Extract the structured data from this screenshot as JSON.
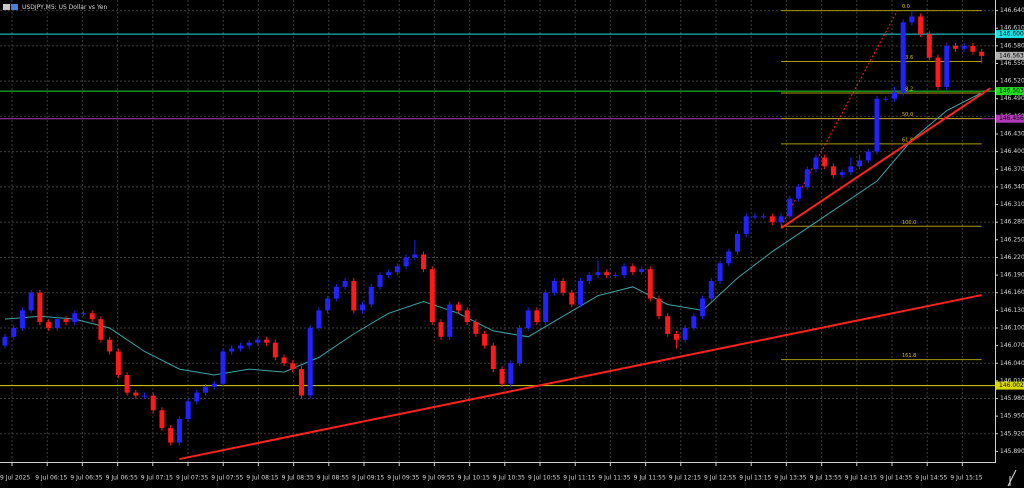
{
  "chart_data": {
    "type": "candlestick",
    "title": "USDJPY,M5:  US Dollar vs Yen",
    "up_color": "#2222ff",
    "down_color": "#ff1a1a",
    "ylim": [
      145.872,
      146.658
    ],
    "yticks": [
      {
        "value": 146.64,
        "label": "146.640"
      },
      {
        "value": 146.61,
        "label": "146.610"
      },
      {
        "value": 146.58,
        "label": "146.580"
      },
      {
        "value": 146.55,
        "label": "146.550"
      },
      {
        "value": 146.52,
        "label": "146.520"
      },
      {
        "value": 146.49,
        "label": "146.490"
      },
      {
        "value": 146.46,
        "label": "146.460"
      },
      {
        "value": 146.43,
        "label": "146.430"
      },
      {
        "value": 146.4,
        "label": "146.400"
      },
      {
        "value": 146.37,
        "label": "146.370"
      },
      {
        "value": 146.34,
        "label": "146.340"
      },
      {
        "value": 146.31,
        "label": "146.310"
      },
      {
        "value": 146.28,
        "label": "146.280"
      },
      {
        "value": 146.25,
        "label": "146.250"
      },
      {
        "value": 146.22,
        "label": "146.220"
      },
      {
        "value": 146.19,
        "label": "146.190"
      },
      {
        "value": 146.16,
        "label": "146.160"
      },
      {
        "value": 146.13,
        "label": "146.130"
      },
      {
        "value": 146.1,
        "label": "146.100"
      },
      {
        "value": 146.07,
        "label": "146.070"
      },
      {
        "value": 146.04,
        "label": "146.040"
      },
      {
        "value": 146.01,
        "label": "146.010"
      },
      {
        "value": 145.98,
        "label": "145.980"
      },
      {
        "value": 145.95,
        "label": "145.950"
      },
      {
        "value": 145.92,
        "label": "145.920"
      },
      {
        "value": 145.89,
        "label": "145.890"
      }
    ],
    "time_labels": [
      "9 Jul 2025",
      "9 Jul 06:15",
      "9 Jul 06:35",
      "9 Jul 06:55",
      "9 Jul 07:15",
      "9 Jul 07:35",
      "9 Jul 07:55",
      "9 Jul 08:15",
      "9 Jul 08:35",
      "9 Jul 08:55",
      "9 Jul 09:15",
      "9 Jul 09:35",
      "9 Jul 09:55",
      "9 Jul 10:15",
      "9 Jul 10:35",
      "9 Jul 10:55",
      "9 Jul 11:15",
      "9 Jul 11:35",
      "9 Jul 11:55",
      "9 Jul 12:15",
      "9 Jul 12:55",
      "9 Jul 13:15",
      "9 Jul 13:35",
      "9 Jul 13:55",
      "9 Jul 14:15",
      "9 Jul 14:35",
      "9 Jul 14:55",
      "9 Jul 15:15"
    ],
    "open": [
      146.07,
      146.085,
      146.1,
      146.13,
      146.16,
      146.11,
      146.1,
      146.115,
      146.11,
      146.125,
      146.125,
      146.115,
      146.08,
      146.06,
      146.02,
      145.99,
      145.985,
      145.985,
      145.96,
      145.93,
      145.905,
      145.945,
      145.975,
      145.99,
      146.0,
      146.005,
      146.06,
      146.065,
      146.07,
      146.075,
      146.08,
      146.075,
      146.05,
      146.04,
      146.03,
      145.985,
      146.1,
      146.13,
      146.15,
      146.17,
      146.18,
      146.13,
      146.14,
      146.17,
      146.19,
      146.195,
      146.205,
      146.22,
      146.225,
      146.2,
      146.11,
      146.085,
      146.14,
      146.13,
      146.11,
      146.09,
      146.07,
      146.03,
      146.005,
      146.04,
      146.1,
      146.13,
      146.11,
      146.16,
      146.18,
      146.16,
      146.14,
      146.18,
      146.19,
      146.195,
      146.19,
      146.19,
      146.205,
      146.195,
      146.2,
      146.15,
      146.12,
      146.09,
      146.08,
      146.1,
      146.12,
      146.15,
      146.18,
      146.21,
      146.23,
      146.26,
      146.29,
      146.29,
      146.29,
      146.28,
      146.29,
      146.32,
      146.34,
      146.37,
      146.39,
      146.375,
      146.36,
      146.365,
      146.375,
      146.385,
      146.4,
      146.49,
      146.49,
      146.5,
      146.62,
      146.63,
      146.6,
      146.56,
      146.51,
      146.58,
      146.575,
      146.58,
      146.57
    ],
    "high": [
      146.09,
      146.105,
      146.135,
      146.165,
      146.165,
      146.115,
      146.12,
      146.12,
      146.13,
      146.13,
      146.13,
      146.12,
      146.085,
      146.065,
      146.025,
      145.995,
      145.99,
      145.99,
      145.965,
      145.935,
      145.95,
      145.98,
      145.995,
      146.005,
      146.01,
      146.065,
      146.07,
      146.075,
      146.08,
      146.085,
      146.085,
      146.08,
      146.055,
      146.045,
      146.035,
      146.105,
      146.135,
      146.155,
      146.175,
      146.185,
      146.185,
      146.145,
      146.175,
      146.195,
      146.2,
      146.21,
      146.225,
      146.25,
      146.23,
      146.205,
      146.115,
      146.145,
      146.145,
      146.135,
      146.115,
      146.095,
      146.075,
      146.035,
      146.045,
      146.105,
      146.135,
      146.135,
      146.165,
      146.185,
      146.185,
      146.165,
      146.185,
      146.195,
      146.215,
      146.2,
      146.195,
      146.21,
      146.21,
      146.205,
      146.205,
      146.155,
      146.125,
      146.095,
      146.105,
      146.125,
      146.155,
      146.185,
      146.215,
      146.235,
      146.265,
      146.295,
      146.295,
      146.295,
      146.295,
      146.295,
      146.325,
      146.345,
      146.375,
      146.395,
      146.395,
      146.38,
      146.37,
      146.39,
      146.395,
      146.405,
      146.495,
      146.495,
      146.51,
      146.625,
      146.64,
      146.635,
      146.605,
      146.565,
      146.585,
      146.585,
      146.585,
      146.585,
      146.575
    ],
    "low": [
      146.065,
      146.08,
      146.095,
      146.125,
      146.105,
      146.095,
      146.095,
      146.105,
      146.105,
      146.12,
      146.11,
      146.075,
      146.055,
      146.015,
      145.985,
      145.98,
      145.98,
      145.955,
      145.925,
      145.9,
      145.9,
      145.94,
      145.97,
      145.985,
      145.995,
      146.0,
      146.055,
      146.06,
      146.065,
      146.07,
      146.07,
      146.045,
      146.035,
      146.025,
      145.98,
      145.98,
      146.095,
      146.125,
      146.145,
      146.165,
      146.125,
      146.125,
      146.135,
      146.165,
      146.185,
      146.19,
      146.2,
      146.215,
      146.195,
      146.105,
      146.08,
      146.08,
      146.125,
      146.105,
      146.085,
      146.065,
      146.025,
      146.0,
      146.0,
      146.035,
      146.095,
      146.105,
      146.105,
      146.155,
      146.155,
      146.135,
      146.135,
      146.175,
      146.185,
      146.185,
      146.185,
      146.185,
      146.19,
      146.19,
      146.145,
      146.115,
      146.085,
      146.065,
      146.075,
      146.095,
      146.115,
      146.145,
      146.175,
      146.205,
      146.225,
      146.255,
      146.285,
      146.285,
      146.275,
      146.275,
      146.285,
      146.315,
      146.335,
      146.365,
      146.37,
      146.355,
      146.355,
      146.36,
      146.37,
      146.38,
      146.395,
      146.485,
      146.485,
      146.495,
      146.615,
      146.595,
      146.555,
      146.505,
      146.505,
      146.57,
      146.57,
      146.565,
      146.55
    ],
    "close": [
      146.085,
      146.1,
      146.13,
      146.16,
      146.11,
      146.1,
      146.115,
      146.11,
      146.125,
      146.125,
      146.115,
      146.08,
      146.06,
      146.02,
      145.99,
      145.985,
      145.985,
      145.96,
      145.93,
      145.905,
      145.945,
      145.975,
      145.99,
      146.0,
      146.005,
      146.06,
      146.065,
      146.07,
      146.075,
      146.08,
      146.075,
      146.05,
      146.04,
      146.03,
      145.985,
      146.1,
      146.13,
      146.15,
      146.17,
      146.18,
      146.13,
      146.14,
      146.17,
      146.19,
      146.195,
      146.205,
      146.22,
      146.225,
      146.2,
      146.11,
      146.085,
      146.14,
      146.13,
      146.11,
      146.09,
      146.07,
      146.03,
      146.005,
      146.04,
      146.1,
      146.13,
      146.11,
      146.16,
      146.18,
      146.16,
      146.14,
      146.18,
      146.19,
      146.195,
      146.19,
      146.19,
      146.205,
      146.195,
      146.2,
      146.15,
      146.12,
      146.09,
      146.08,
      146.1,
      146.12,
      146.15,
      146.18,
      146.21,
      146.23,
      146.26,
      146.29,
      146.29,
      146.29,
      146.28,
      146.29,
      146.32,
      146.34,
      146.37,
      146.39,
      146.375,
      146.36,
      146.365,
      146.375,
      146.385,
      146.4,
      146.49,
      146.49,
      146.5,
      146.62,
      146.63,
      146.6,
      146.56,
      146.51,
      146.58,
      146.575,
      146.58,
      146.57,
      146.563
    ],
    "moving_average": {
      "color": "#3fa3a8",
      "x": [
        0,
        4,
        8,
        12,
        16,
        20,
        24,
        28,
        32,
        36,
        40,
        44,
        48,
        52,
        56,
        60,
        64,
        68,
        72,
        76,
        80,
        84,
        88,
        92,
        96,
        100,
        104,
        108,
        112
      ],
      "values": [
        146.115,
        146.12,
        146.115,
        146.1,
        146.06,
        146.03,
        146.02,
        146.03,
        146.025,
        146.05,
        146.09,
        146.125,
        146.145,
        146.125,
        146.095,
        146.085,
        146.12,
        146.155,
        146.17,
        146.14,
        146.13,
        146.185,
        146.23,
        146.27,
        146.31,
        146.35,
        146.42,
        146.47,
        146.5
      ]
    },
    "horizontal_lines": [
      {
        "value": 146.6,
        "label": "146.600",
        "color": "#1ee0e0"
      },
      {
        "value": 146.503,
        "label": "146.503",
        "color": "#22dd22"
      },
      {
        "value": 146.456,
        "label": "146.456",
        "color": "#b23ab8"
      },
      {
        "value": 146.002,
        "label": "146.002",
        "color": "#d8d800"
      }
    ],
    "current_price": {
      "value": 146.563,
      "label": "146.563"
    },
    "trend_lines": [
      {
        "color": "#ff2020",
        "x": [
          20,
          112
        ],
        "y": [
          145.877,
          146.156
        ]
      },
      {
        "color": "#ff2020",
        "x": [
          89,
          113
        ],
        "y": [
          146.27,
          146.508
        ]
      }
    ],
    "fibonacci": {
      "color": "#a89a10",
      "x": [
        89,
        112
      ],
      "price_0": 146.64,
      "price_100": 146.273,
      "levels": [
        {
          "value": 0,
          "label": "0.0"
        },
        {
          "value": 23.6,
          "label": "23.6"
        },
        {
          "value": 38.2,
          "label": "38.2"
        },
        {
          "value": 50,
          "label": "50.0"
        },
        {
          "value": 61.8,
          "label": "61.8"
        },
        {
          "value": 100,
          "label": "100.0"
        },
        {
          "value": 161.8,
          "label": "161.8"
        }
      ]
    }
  }
}
